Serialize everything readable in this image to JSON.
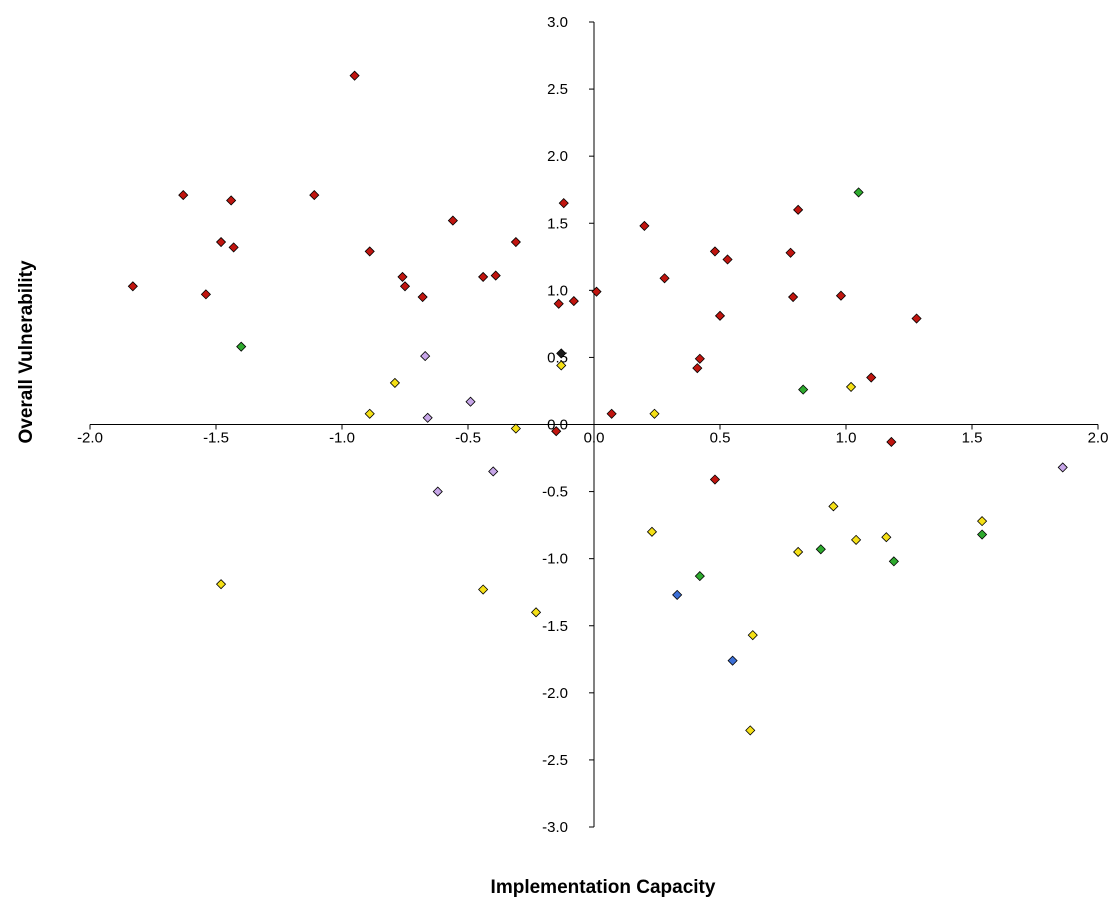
{
  "chart_data": {
    "type": "scatter",
    "title": "",
    "xlabel": "Implementation Capacity",
    "ylabel": "Overall Vulnerability",
    "xlim": [
      -2.0,
      2.0
    ],
    "ylim": [
      -3.0,
      3.0
    ],
    "x_ticks": [
      -2.0,
      -1.5,
      -1.0,
      -0.5,
      0.0,
      0.5,
      1.0,
      1.5,
      2.0
    ],
    "y_ticks": [
      -3.0,
      -2.5,
      -2.0,
      -1.5,
      -1.0,
      -0.5,
      0.0,
      0.5,
      1.0,
      1.5,
      2.0,
      2.5,
      3.0
    ],
    "x_tick_labels": [
      "-2.0",
      "-1.5",
      "-1.0",
      "-0.5",
      "0.0",
      "0.5",
      "1.0",
      "1.5",
      "2.0"
    ],
    "y_tick_labels": [
      "-3.0",
      "-2.5",
      "-2.0",
      "-1.5",
      "-1.0",
      "-0.5",
      "0.0",
      "0.5",
      "1.0",
      "1.5",
      "2.0",
      "2.5",
      "3.0"
    ],
    "grid": false,
    "legend": "none",
    "marker": "diamond",
    "series": [
      {
        "color": "#c0150f",
        "points": [
          [
            -1.83,
            1.03
          ],
          [
            -1.63,
            1.71
          ],
          [
            -1.54,
            0.97
          ],
          [
            -1.48,
            1.36
          ],
          [
            -1.44,
            1.67
          ],
          [
            -1.43,
            1.32
          ],
          [
            -1.11,
            1.71
          ],
          [
            -0.95,
            2.6
          ],
          [
            -0.89,
            1.29
          ],
          [
            -0.76,
            1.1
          ],
          [
            -0.75,
            1.03
          ],
          [
            -0.68,
            0.95
          ],
          [
            -0.56,
            1.52
          ],
          [
            -0.44,
            1.1
          ],
          [
            -0.39,
            1.11
          ],
          [
            -0.31,
            1.36
          ],
          [
            -0.12,
            1.65
          ],
          [
            -0.14,
            0.9
          ],
          [
            -0.08,
            0.92
          ],
          [
            0.01,
            0.99
          ],
          [
            -0.15,
            -0.05
          ],
          [
            0.07,
            0.08
          ],
          [
            0.2,
            1.48
          ],
          [
            0.28,
            1.09
          ],
          [
            0.41,
            0.42
          ],
          [
            0.42,
            0.49
          ],
          [
            0.48,
            1.29
          ],
          [
            0.5,
            0.81
          ],
          [
            0.53,
            1.23
          ],
          [
            0.48,
            -0.41
          ],
          [
            0.78,
            1.28
          ],
          [
            0.79,
            0.95
          ],
          [
            0.81,
            1.6
          ],
          [
            0.98,
            0.96
          ],
          [
            1.1,
            0.35
          ],
          [
            1.18,
            -0.13
          ],
          [
            1.28,
            0.79
          ]
        ]
      },
      {
        "color": "#1a1a1a",
        "points": [
          [
            -0.13,
            0.53
          ]
        ]
      },
      {
        "color": "#2eaa2e",
        "points": [
          [
            -1.4,
            0.58
          ],
          [
            0.42,
            -1.13
          ],
          [
            0.83,
            0.26
          ],
          [
            0.9,
            -0.93
          ],
          [
            1.05,
            1.73
          ],
          [
            1.19,
            -1.02
          ],
          [
            1.54,
            -0.82
          ]
        ]
      },
      {
        "color": "#f5e016",
        "points": [
          [
            -1.48,
            -1.19
          ],
          [
            -0.89,
            0.08
          ],
          [
            -0.79,
            0.31
          ],
          [
            -0.44,
            -1.23
          ],
          [
            -0.31,
            -0.03
          ],
          [
            -0.23,
            -1.4
          ],
          [
            -0.13,
            0.44
          ],
          [
            0.23,
            -0.8
          ],
          [
            0.24,
            0.08
          ],
          [
            0.62,
            -2.28
          ],
          [
            0.63,
            -1.57
          ],
          [
            0.81,
            -0.95
          ],
          [
            0.95,
            -0.61
          ],
          [
            1.02,
            0.28
          ],
          [
            1.04,
            -0.86
          ],
          [
            1.16,
            -0.84
          ],
          [
            1.54,
            -0.72
          ]
        ]
      },
      {
        "color": "#c7a6e8",
        "points": [
          [
            -0.67,
            0.51
          ],
          [
            -0.66,
            0.05
          ],
          [
            -0.62,
            -0.5
          ],
          [
            -0.49,
            0.17
          ],
          [
            -0.4,
            -0.35
          ],
          [
            1.86,
            -0.32
          ]
        ]
      },
      {
        "color": "#3c6fd6",
        "points": [
          [
            0.33,
            -1.27
          ],
          [
            0.55,
            -1.76
          ]
        ]
      }
    ]
  }
}
